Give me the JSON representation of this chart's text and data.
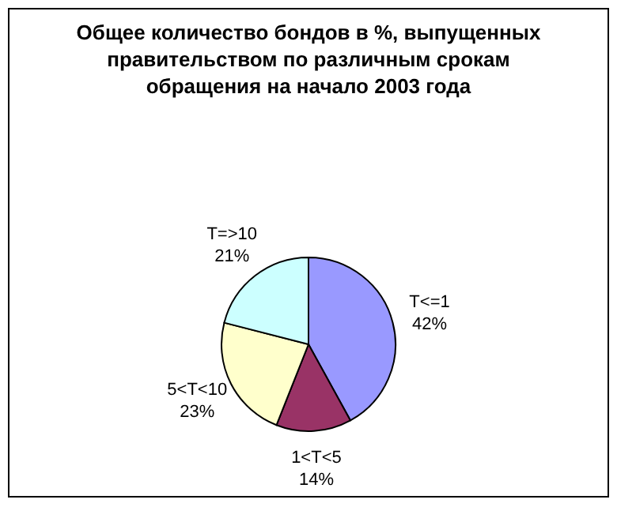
{
  "chart_data": {
    "type": "pie",
    "title": "Общее количество бондов в %, выпущенных правительством по различным срокам обращения на начало 2003 года",
    "categories": [
      "T<=1",
      "1<T<5",
      "5<T<10",
      "T=>10"
    ],
    "values": [
      42,
      14,
      23,
      21
    ],
    "value_labels": [
      "42%",
      "14%",
      "23%",
      "21%"
    ],
    "colors": [
      "#9999ff",
      "#993366",
      "#ffffcc",
      "#ccffff"
    ]
  }
}
